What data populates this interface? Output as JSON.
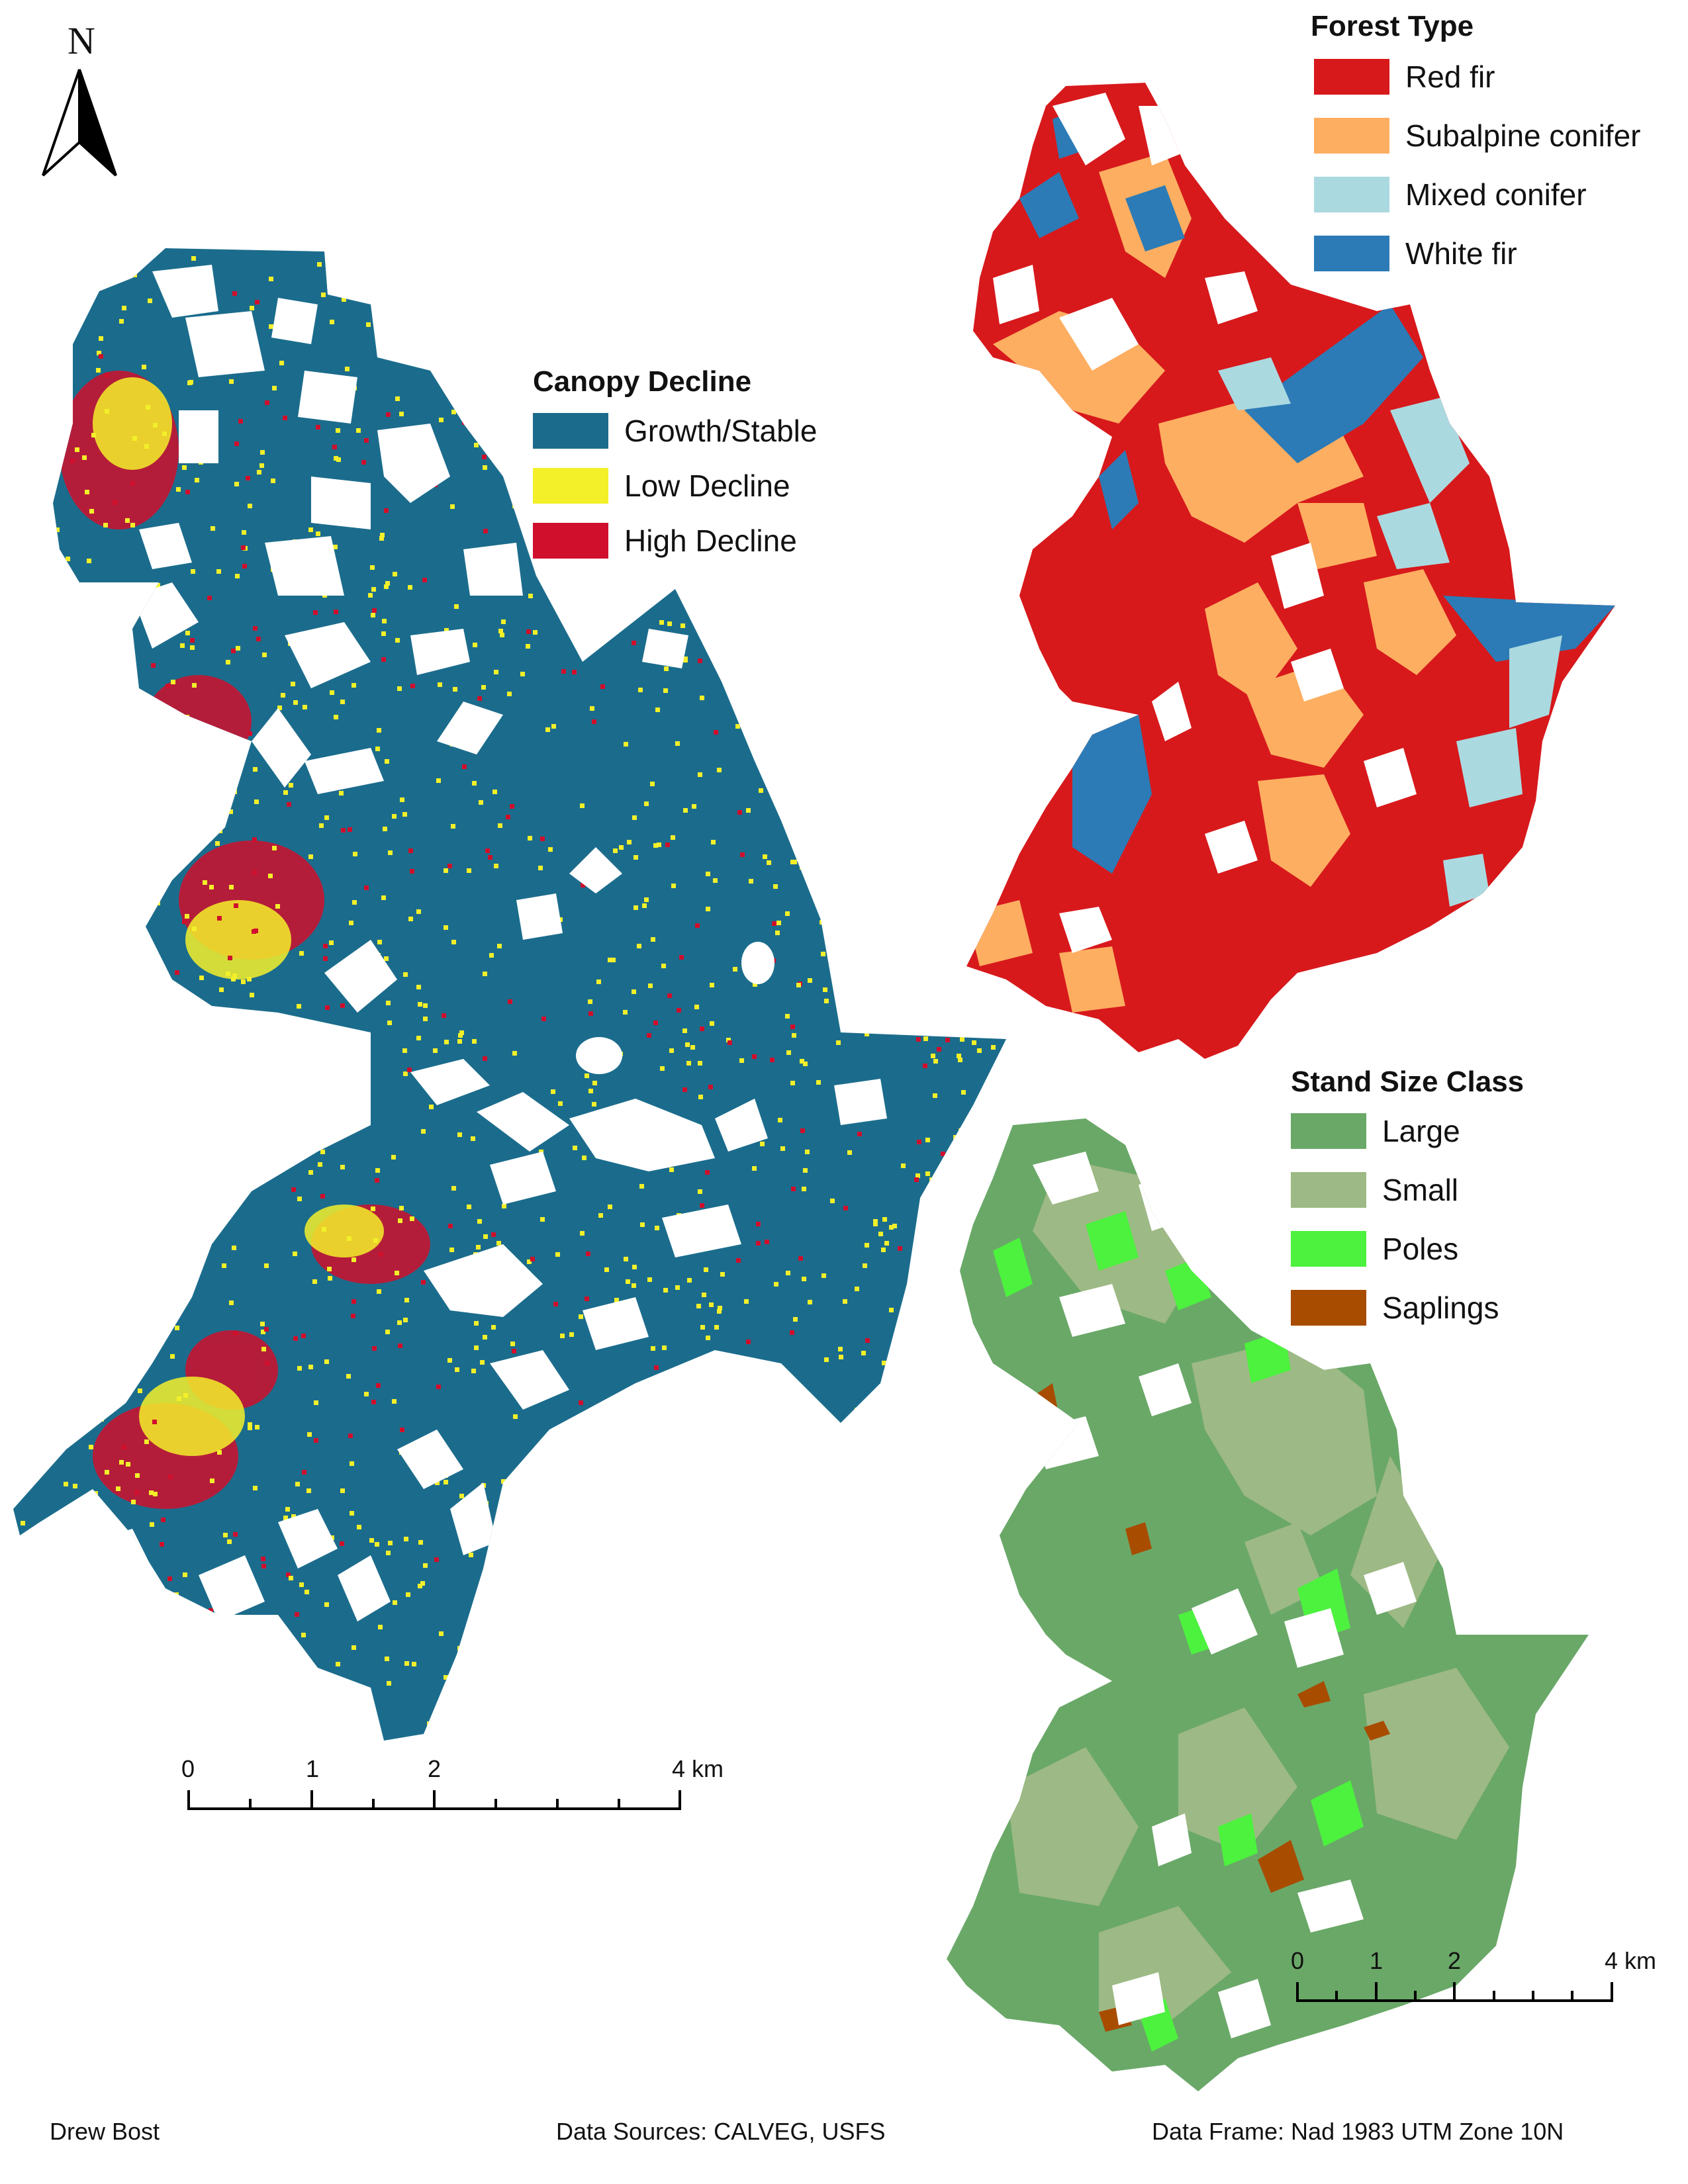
{
  "north_arrow": {
    "letter": "N"
  },
  "canopy_decline": {
    "title": "Canopy Decline",
    "classes": [
      {
        "label": "Growth/Stable",
        "color": "#1b6c8c"
      },
      {
        "label": "Low Decline",
        "color": "#f3f02a"
      },
      {
        "label": "High Decline",
        "color": "#cf0f2c"
      }
    ]
  },
  "forest_type": {
    "title": "Forest Type",
    "classes": [
      {
        "label": "Red fir",
        "color": "#d7191c"
      },
      {
        "label": "Subalpine conifer",
        "color": "#fdae61"
      },
      {
        "label": "Mixed conifer",
        "color": "#abd9e0"
      },
      {
        "label": "White fir",
        "color": "#2c7bb6"
      }
    ]
  },
  "stand_size": {
    "title": "Stand Size Class",
    "classes": [
      {
        "label": "Large",
        "color": "#6aa868"
      },
      {
        "label": "Small",
        "color": "#9db985"
      },
      {
        "label": "Poles",
        "color": "#4cf23e"
      },
      {
        "label": "Saplings",
        "color": "#a84c00"
      }
    ]
  },
  "scale_main": {
    "labels": [
      "0",
      "1",
      "2",
      "4 km"
    ]
  },
  "scale_small": {
    "labels": [
      "0",
      "1",
      "2",
      "4 km"
    ]
  },
  "footer": {
    "author": "Drew Bost",
    "sources": "Data Sources: CALVEG, USFS",
    "frame": "Data Frame: Nad 1983 UTM Zone 10N"
  }
}
